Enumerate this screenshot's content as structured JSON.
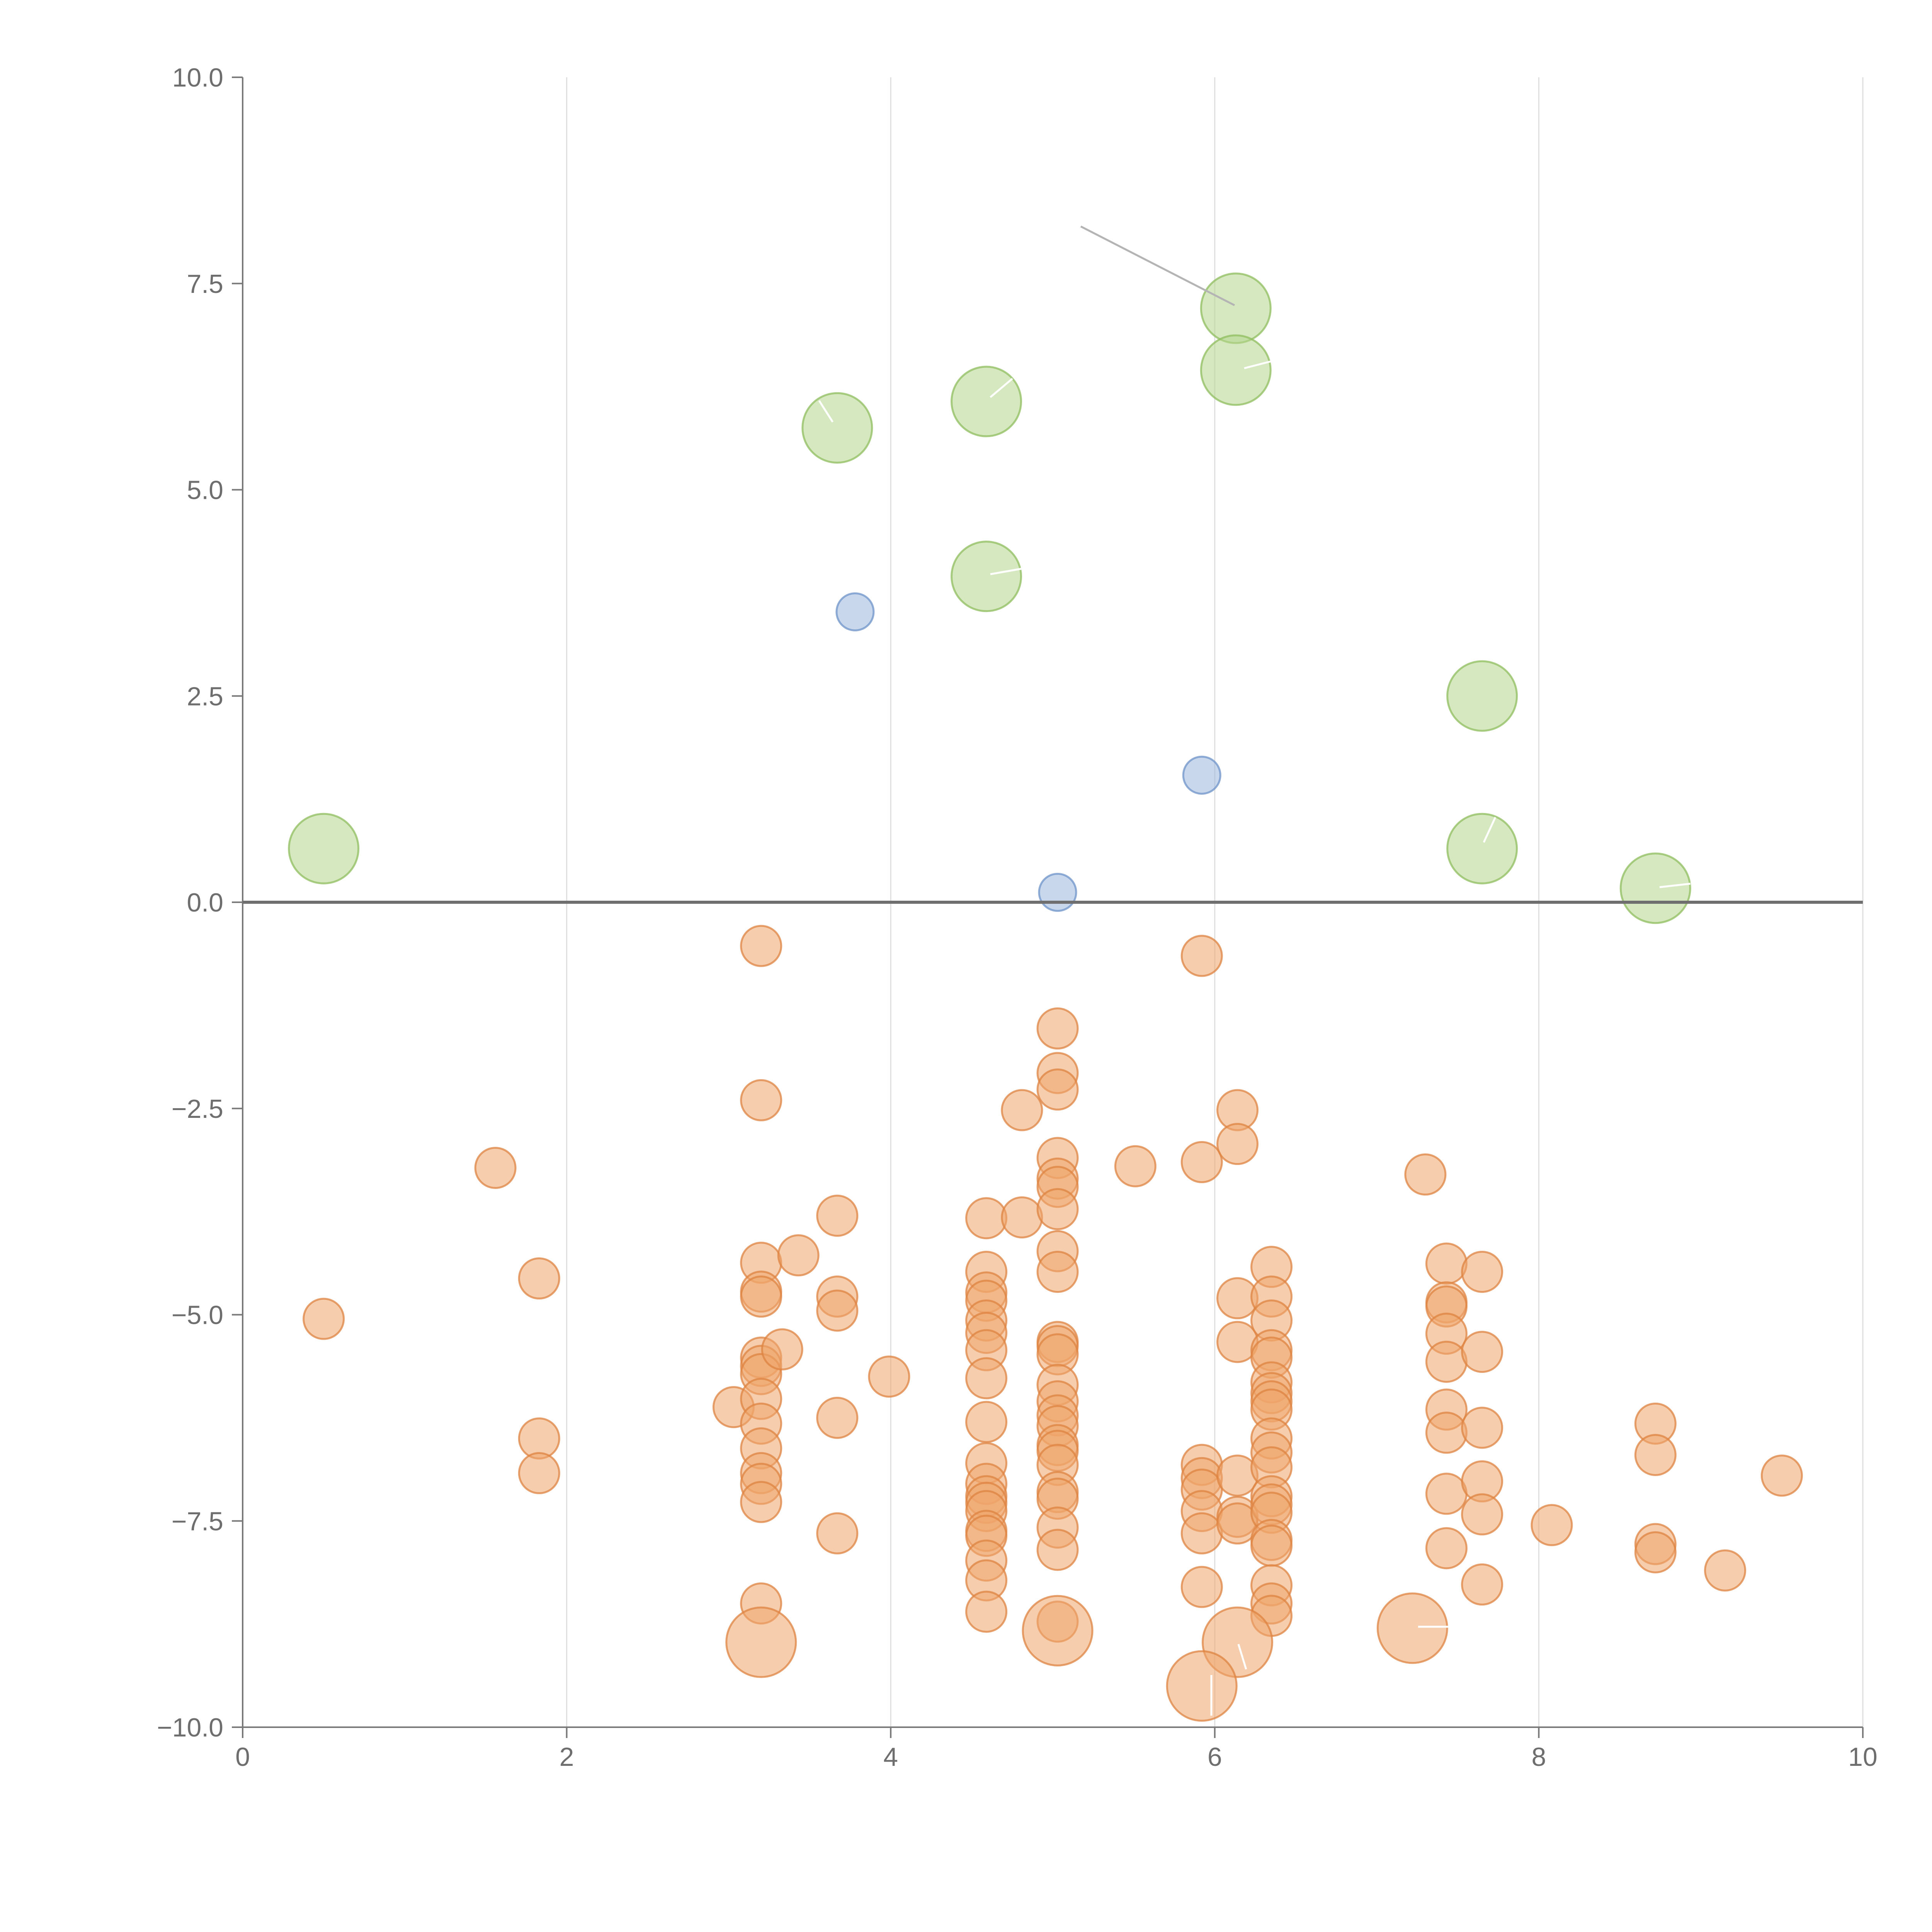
{
  "chart_data": {
    "type": "scatter",
    "title": "",
    "xlabel": "",
    "ylabel": "",
    "xlim": [
      0,
      10
    ],
    "ylim": [
      -10,
      10
    ],
    "x_ticks": [
      0,
      2,
      4,
      6,
      8,
      10
    ],
    "x_tick_labels": [
      "0",
      "2",
      "4",
      "6",
      "8",
      "10"
    ],
    "y_ticks": [
      10,
      7.5,
      5,
      2.5,
      0,
      -2.5,
      -5,
      -7.5,
      -10
    ],
    "y_tick_labels": [
      "10.0",
      "7.5",
      "5.0",
      "2.5",
      "0.0",
      "−2.5",
      "−5.0",
      "−7.5",
      "−10.0"
    ],
    "grid": "vertical",
    "reference_line_y": 0,
    "series": [
      {
        "name": "green",
        "color": "#b5d58c",
        "stroke": "#8fbd5e",
        "size": "large",
        "points": [
          [
            0.5,
            0.65
          ],
          [
            3.67,
            5.75
          ],
          [
            4.59,
            6.07
          ],
          [
            4.59,
            3.95
          ],
          [
            6.13,
            7.2
          ],
          [
            6.13,
            6.45
          ],
          [
            7.65,
            2.5
          ],
          [
            7.65,
            0.65
          ],
          [
            8.72,
            0.17
          ]
        ]
      },
      {
        "name": "blue",
        "color": "#9bb6dd",
        "stroke": "#6e93c9",
        "size": "small",
        "points": [
          [
            3.78,
            3.52
          ],
          [
            5.92,
            1.54
          ],
          [
            5.03,
            0.12
          ]
        ]
      },
      {
        "name": "orange",
        "color": "#eea56b",
        "stroke": "#dd8341",
        "size": "medium",
        "points": [
          [
            0.5,
            -5.05
          ],
          [
            1.56,
            -3.22
          ],
          [
            1.83,
            -4.56
          ],
          [
            1.83,
            -6.5
          ],
          [
            1.83,
            -6.92
          ],
          [
            3.03,
            -6.12
          ],
          [
            3.2,
            -0.53
          ],
          [
            3.2,
            -2.4
          ],
          [
            3.2,
            -4.37
          ],
          [
            3.2,
            -4.72
          ],
          [
            3.2,
            -4.78
          ],
          [
            3.2,
            -5.52
          ],
          [
            3.2,
            -5.62
          ],
          [
            3.2,
            -5.72
          ],
          [
            3.2,
            -6.02
          ],
          [
            3.2,
            -6.32
          ],
          [
            3.2,
            -6.62
          ],
          [
            3.2,
            -6.92
          ],
          [
            3.2,
            -7.05
          ],
          [
            3.2,
            -7.27
          ],
          [
            3.2,
            -8.5
          ],
          [
            3.33,
            -5.42
          ],
          [
            3.43,
            -4.28
          ],
          [
            3.67,
            -3.8
          ],
          [
            3.67,
            -4.78
          ],
          [
            3.67,
            -4.95
          ],
          [
            3.67,
            -6.25
          ],
          [
            3.67,
            -7.65
          ],
          [
            3.99,
            -5.75
          ],
          [
            4.59,
            -3.83
          ],
          [
            4.59,
            -4.48
          ],
          [
            4.59,
            -4.73
          ],
          [
            4.59,
            -4.83
          ],
          [
            4.59,
            -5.07
          ],
          [
            4.59,
            -5.22
          ],
          [
            4.59,
            -5.43
          ],
          [
            4.59,
            -5.77
          ],
          [
            4.59,
            -6.3
          ],
          [
            4.59,
            -6.8
          ],
          [
            4.59,
            -7.05
          ],
          [
            4.59,
            -7.2
          ],
          [
            4.59,
            -7.28
          ],
          [
            4.59,
            -7.38
          ],
          [
            4.59,
            -7.62
          ],
          [
            4.59,
            -7.68
          ],
          [
            4.59,
            -7.98
          ],
          [
            4.59,
            -8.22
          ],
          [
            4.59,
            -8.6
          ],
          [
            4.81,
            -2.52
          ],
          [
            4.81,
            -3.82
          ],
          [
            5.03,
            -1.53
          ],
          [
            5.03,
            -2.07
          ],
          [
            5.03,
            -2.27
          ],
          [
            5.03,
            -3.1
          ],
          [
            5.03,
            -3.35
          ],
          [
            5.03,
            -3.45
          ],
          [
            5.03,
            -3.72
          ],
          [
            5.03,
            -4.23
          ],
          [
            5.03,
            -4.48
          ],
          [
            5.03,
            -5.33
          ],
          [
            5.03,
            -5.38
          ],
          [
            5.03,
            -5.48
          ],
          [
            5.03,
            -5.85
          ],
          [
            5.03,
            -6.05
          ],
          [
            5.03,
            -6.22
          ],
          [
            5.03,
            -6.35
          ],
          [
            5.03,
            -6.58
          ],
          [
            5.03,
            -6.65
          ],
          [
            5.03,
            -6.82
          ],
          [
            5.03,
            -7.15
          ],
          [
            5.03,
            -7.23
          ],
          [
            5.03,
            -7.58
          ],
          [
            5.03,
            -7.85
          ],
          [
            5.03,
            -8.72
          ],
          [
            5.51,
            -3.2
          ],
          [
            5.92,
            -0.65
          ],
          [
            5.92,
            -3.15
          ],
          [
            5.92,
            -6.82
          ],
          [
            5.92,
            -6.98
          ],
          [
            5.92,
            -7.12
          ],
          [
            5.92,
            -7.38
          ],
          [
            5.92,
            -7.65
          ],
          [
            5.92,
            -8.3
          ],
          [
            6.14,
            -2.52
          ],
          [
            6.14,
            -2.93
          ],
          [
            6.14,
            -4.8
          ],
          [
            6.14,
            -5.33
          ],
          [
            6.14,
            -6.95
          ],
          [
            6.14,
            -7.45
          ],
          [
            6.14,
            -7.53
          ],
          [
            6.35,
            -4.42
          ],
          [
            6.35,
            -4.78
          ],
          [
            6.35,
            -5.07
          ],
          [
            6.35,
            -5.43
          ],
          [
            6.35,
            -5.52
          ],
          [
            6.35,
            -5.82
          ],
          [
            6.35,
            -5.95
          ],
          [
            6.35,
            -6.05
          ],
          [
            6.35,
            -6.15
          ],
          [
            6.35,
            -6.5
          ],
          [
            6.35,
            -6.67
          ],
          [
            6.35,
            -6.85
          ],
          [
            6.35,
            -7.2
          ],
          [
            6.35,
            -7.3
          ],
          [
            6.35,
            -7.4
          ],
          [
            6.35,
            -7.73
          ],
          [
            6.35,
            -7.8
          ],
          [
            6.35,
            -8.28
          ],
          [
            6.35,
            -8.5
          ],
          [
            6.35,
            -8.65
          ],
          [
            7.3,
            -3.3
          ],
          [
            7.43,
            -4.38
          ],
          [
            7.43,
            -4.85
          ],
          [
            7.43,
            -4.9
          ],
          [
            7.43,
            -5.23
          ],
          [
            7.43,
            -5.57
          ],
          [
            7.43,
            -6.15
          ],
          [
            7.43,
            -6.43
          ],
          [
            7.43,
            -7.17
          ],
          [
            7.43,
            -7.83
          ],
          [
            7.65,
            -4.48
          ],
          [
            7.65,
            -5.45
          ],
          [
            7.65,
            -6.37
          ],
          [
            7.65,
            -7.02
          ],
          [
            7.65,
            -7.42
          ],
          [
            7.65,
            -8.27
          ],
          [
            8.08,
            -7.55
          ],
          [
            8.72,
            -6.32
          ],
          [
            8.72,
            -6.7
          ],
          [
            8.72,
            -7.78
          ],
          [
            8.72,
            -7.88
          ],
          [
            9.15,
            -8.1
          ],
          [
            9.5,
            -6.95
          ]
        ]
      },
      {
        "name": "orange-large",
        "color": "#eea56b",
        "stroke": "#dd8341",
        "size": "large",
        "points": [
          [
            3.2,
            -8.97
          ],
          [
            5.03,
            -8.83
          ],
          [
            6.14,
            -8.97
          ],
          [
            5.92,
            -9.5
          ],
          [
            7.22,
            -8.8
          ]
        ]
      }
    ]
  }
}
